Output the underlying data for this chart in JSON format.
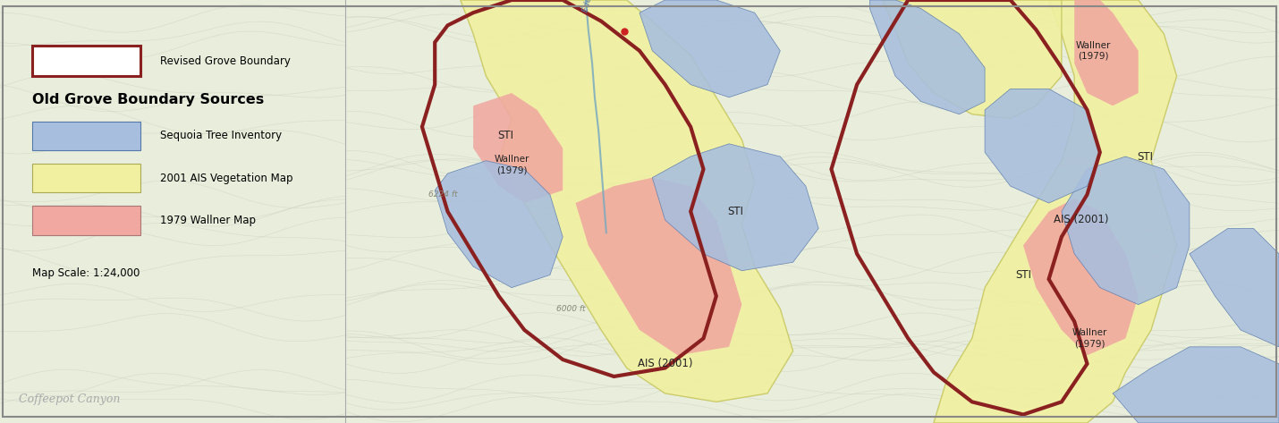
{
  "figsize": [
    14.3,
    4.73
  ],
  "dpi": 100,
  "bg_color": "#e8eddc",
  "topo_bg": "#e8eddc",
  "topo_line_color": "#c5cdb8",
  "border_color": "#888888",
  "revised_boundary_color": "#8B2020",
  "sti_color": "#a8bede",
  "ais_color": "#f0f0a0",
  "wallner_color": "#f0a8a0",
  "legend_title1": "Revised Grove Boundary",
  "legend_section": "Old Grove Boundary Sources",
  "legend_items": [
    {
      "label": "Sequoia Tree Inventory",
      "color": "#a8bede"
    },
    {
      "label": "2001 AIS Vegetation Map",
      "color": "#f0f0a0"
    },
    {
      "label": "1979 Wallner Map",
      "color": "#f0a8a0"
    }
  ],
  "map_scale": "Map Scale: 1:24,000",
  "coffeepot_canyon": "Coffeepot Canyon"
}
